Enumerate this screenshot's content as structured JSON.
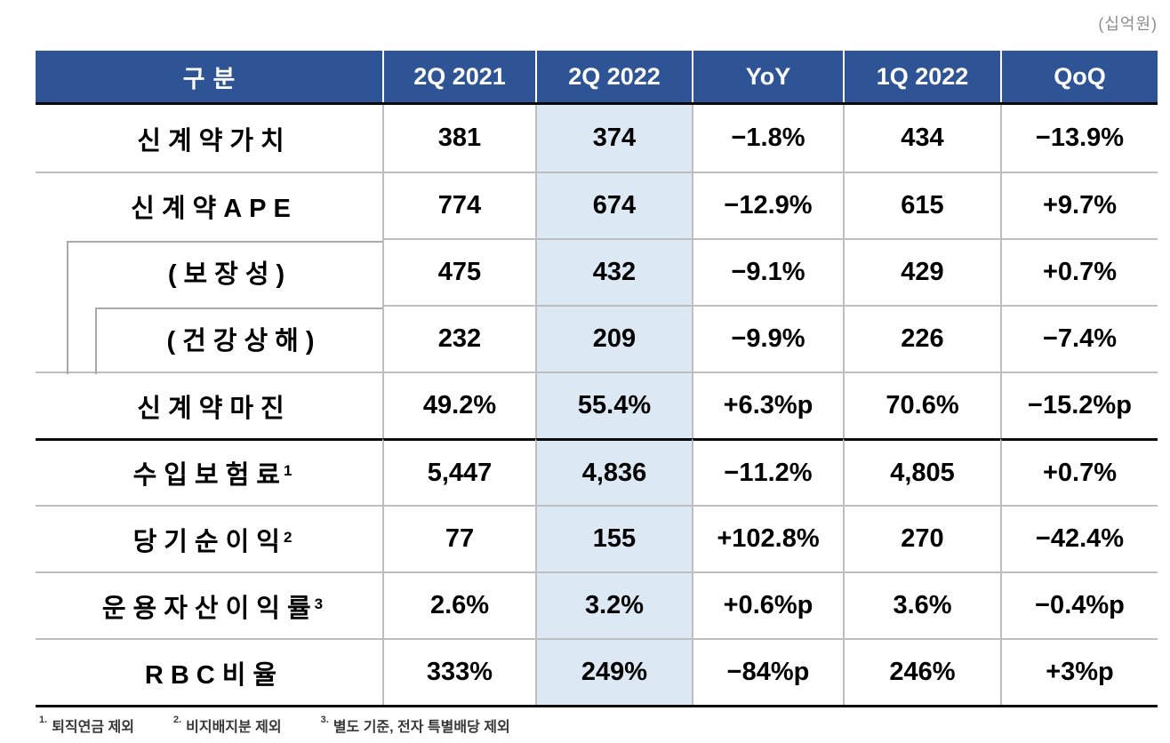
{
  "unit_label": "(십억원)",
  "colors": {
    "header_bg": "#2F5496",
    "highlight_bg": "#DCE9F5",
    "thin_line": "#BEBEBE",
    "indent_line": "#A9A9A9",
    "thick_line": "#0A0A0A",
    "unit_text": "#8C8C8C",
    "footnote_text": "#383838",
    "value_text": "#000000",
    "header_text": "#FFFFFF"
  },
  "table": {
    "columns": [
      "구분",
      "2Q 2021",
      "2Q 2022",
      "YoY",
      "1Q 2022",
      "QoQ"
    ],
    "highlighted_column": "2Q 2022",
    "rows": [
      {
        "label": "신계약가치",
        "sup": "",
        "values": [
          "381",
          "374",
          "−1.8%",
          "434",
          "−13.9%"
        ]
      },
      {
        "label": "신계약APE",
        "sup": "",
        "values": [
          "774",
          "674",
          "−12.9%",
          "615",
          "+9.7%"
        ]
      },
      {
        "label": "(보장성)",
        "sup": "",
        "values": [
          "475",
          "432",
          "−9.1%",
          "429",
          "+0.7%"
        ]
      },
      {
        "label": "(건강상해)",
        "sup": "",
        "values": [
          "232",
          "209",
          "−9.9%",
          "226",
          "−7.4%"
        ]
      },
      {
        "label": "신계약마진",
        "sup": "",
        "values": [
          "49.2%",
          "55.4%",
          "+6.3%p",
          "70.6%",
          "−15.2%p"
        ]
      },
      {
        "label": "수입보험료",
        "sup": "1",
        "values": [
          "5,447",
          "4,836",
          "−11.2%",
          "4,805",
          "+0.7%"
        ]
      },
      {
        "label": "당기순이익",
        "sup": "2",
        "values": [
          "77",
          "155",
          "+102.8%",
          "270",
          "−42.4%"
        ]
      },
      {
        "label": "운용자산이익률",
        "sup": "3",
        "values": [
          "2.6%",
          "3.2%",
          "+0.6%p",
          "3.6%",
          "−0.4%p"
        ]
      },
      {
        "label": "RBC비율",
        "sup": "",
        "values": [
          "333%",
          "249%",
          "−84%p",
          "246%",
          "+3%p"
        ]
      }
    ]
  },
  "footnotes": [
    {
      "marker": "1.",
      "text": "퇴직연금 제외"
    },
    {
      "marker": "2.",
      "text": "비지배지분 제외"
    },
    {
      "marker": "3.",
      "text": "별도 기준, 전자 특별배당 제외"
    }
  ]
}
